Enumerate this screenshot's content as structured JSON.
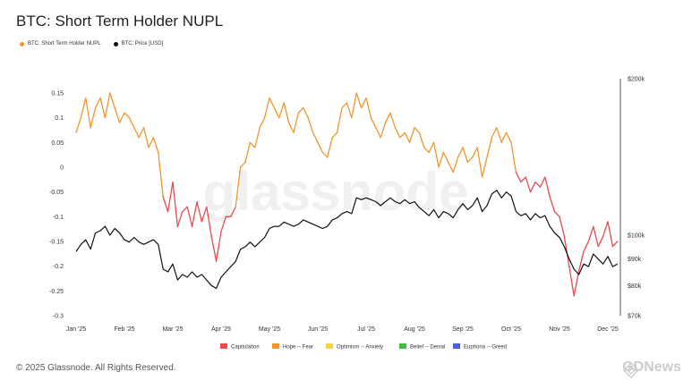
{
  "title": "BTC: Short Term Holder NUPL",
  "footer": "© 2025 Glassnode. All Rights Reserved.",
  "watermark": "glassnode",
  "corner_watermark": "GDNews",
  "colors": {
    "nupl": "#f0962e",
    "price": "#111111",
    "capitulation": "#e84a50",
    "hope_fear": "#f0962e",
    "optimism_anxiety": "#f5d44a",
    "belief_denial": "#3fbf3f",
    "euphoria_greed": "#4a5fe0"
  },
  "chart_data": {
    "type": "line",
    "title": "BTC: Short Term Holder NUPL",
    "x_ticks": [
      "Jan '25",
      "Feb '25",
      "Mar '25",
      "Apr '25",
      "May '25",
      "Jun '25",
      "Jul '25",
      "Aug '25",
      "Sep '25",
      "Oct '25",
      "Nov '25",
      "Dec '25"
    ],
    "y_left": {
      "ticks": [
        "0.15",
        "0.1",
        "0.05",
        "0",
        "-0.05",
        "-0.1",
        "-0.15",
        "-0.2",
        "-0.25",
        "-0.3"
      ],
      "range": [
        -0.3,
        0.15
      ]
    },
    "y_right": {
      "ticks": [
        "$200k",
        "$100k",
        "$90k",
        "$80k",
        "$70k"
      ],
      "scale": "log",
      "range": [
        70000,
        200000
      ]
    },
    "top_legend": [
      {
        "label": "BTC: Short Term Holder NUPL",
        "color": "#f0962e"
      },
      {
        "label": "BTC: Price [USD]",
        "color": "#111111"
      }
    ],
    "bottom_legend": [
      {
        "label": "Capitulation",
        "color": "#e84a50"
      },
      {
        "label": "Hope -- Fear",
        "color": "#f0962e"
      },
      {
        "label": "Optimism -- Anxiety",
        "color": "#f5d44a"
      },
      {
        "label": "Belief -- Denial",
        "color": "#3fbf3f"
      },
      {
        "label": "Euphoria -- Greed",
        "color": "#4a5fe0"
      }
    ],
    "series": [
      {
        "name": "BTC: Short Term Holder NUPL",
        "x": [
          0,
          0.1,
          0.2,
          0.3,
          0.4,
          0.5,
          0.6,
          0.7,
          0.8,
          0.9,
          1.0,
          1.1,
          1.2,
          1.3,
          1.4,
          1.5,
          1.6,
          1.7,
          1.8,
          1.9,
          2.0,
          2.1,
          2.2,
          2.3,
          2.4,
          2.5,
          2.6,
          2.7,
          2.8,
          2.9,
          3.0,
          3.1,
          3.2,
          3.3,
          3.4,
          3.5,
          3.6,
          3.7,
          3.8,
          3.9,
          4.0,
          4.1,
          4.2,
          4.3,
          4.4,
          4.5,
          4.6,
          4.7,
          4.8,
          4.9,
          5.0,
          5.1,
          5.2,
          5.3,
          5.4,
          5.5,
          5.6,
          5.7,
          5.8,
          5.9,
          6.0,
          6.1,
          6.2,
          6.3,
          6.4,
          6.5,
          6.6,
          6.7,
          6.8,
          6.9,
          7.0,
          7.1,
          7.2,
          7.3,
          7.4,
          7.5,
          7.6,
          7.7,
          7.8,
          7.9,
          8.0,
          8.1,
          8.2,
          8.3,
          8.4,
          8.5,
          8.6,
          8.7,
          8.8,
          8.9,
          9.0,
          9.1,
          9.2,
          9.3,
          9.4,
          9.5,
          9.6,
          9.7,
          9.8,
          9.9,
          10.0,
          10.1,
          10.2,
          10.3,
          10.4,
          10.5,
          10.6,
          10.7,
          10.8,
          10.9,
          11.0,
          11.1,
          11.2
        ],
        "values": [
          0.07,
          0.1,
          0.14,
          0.08,
          0.12,
          0.14,
          0.1,
          0.15,
          0.12,
          0.09,
          0.11,
          0.1,
          0.08,
          0.06,
          0.08,
          0.04,
          0.06,
          0.03,
          -0.06,
          -0.09,
          -0.03,
          -0.12,
          -0.09,
          -0.08,
          -0.12,
          -0.07,
          -0.11,
          -0.08,
          -0.14,
          -0.19,
          -0.13,
          -0.1,
          -0.1,
          -0.08,
          0.0,
          0.01,
          0.05,
          0.04,
          0.08,
          0.1,
          0.14,
          0.12,
          0.1,
          0.13,
          0.09,
          0.07,
          0.11,
          0.12,
          0.1,
          0.07,
          0.05,
          0.03,
          0.02,
          0.06,
          0.07,
          0.12,
          0.13,
          0.1,
          0.15,
          0.12,
          0.14,
          0.1,
          0.08,
          0.06,
          0.09,
          0.11,
          0.08,
          0.06,
          0.07,
          0.05,
          0.08,
          0.07,
          0.04,
          0.03,
          0.05,
          0.0,
          0.03,
          0.01,
          -0.01,
          0.02,
          0.04,
          0.01,
          0.02,
          0.04,
          -0.02,
          0.02,
          0.06,
          0.08,
          0.05,
          0.07,
          0.05,
          -0.01,
          -0.03,
          -0.02,
          -0.05,
          -0.03,
          -0.04,
          -0.02,
          -0.06,
          -0.09,
          -0.1,
          -0.14,
          -0.2,
          -0.26,
          -0.21,
          -0.17,
          -0.15,
          -0.12,
          -0.16,
          -0.14,
          -0.11,
          -0.16,
          -0.15
        ]
      },
      {
        "name": "BTC: Price [USD]",
        "x": [
          0,
          0.1,
          0.2,
          0.3,
          0.4,
          0.5,
          0.6,
          0.7,
          0.8,
          0.9,
          1.0,
          1.1,
          1.2,
          1.3,
          1.4,
          1.5,
          1.6,
          1.7,
          1.8,
          1.9,
          2.0,
          2.1,
          2.2,
          2.3,
          2.4,
          2.5,
          2.6,
          2.7,
          2.8,
          2.9,
          3.0,
          3.1,
          3.2,
          3.3,
          3.4,
          3.5,
          3.6,
          3.7,
          3.8,
          3.9,
          4.0,
          4.1,
          4.2,
          4.3,
          4.4,
          4.5,
          4.6,
          4.7,
          4.8,
          4.9,
          5.0,
          5.1,
          5.2,
          5.3,
          5.4,
          5.5,
          5.6,
          5.7,
          5.8,
          5.9,
          6.0,
          6.1,
          6.2,
          6.3,
          6.4,
          6.5,
          6.6,
          6.7,
          6.8,
          6.9,
          7.0,
          7.1,
          7.2,
          7.3,
          7.4,
          7.5,
          7.6,
          7.7,
          7.8,
          7.9,
          8.0,
          8.1,
          8.2,
          8.3,
          8.4,
          8.5,
          8.6,
          8.7,
          8.8,
          8.9,
          9.0,
          9.1,
          9.2,
          9.3,
          9.4,
          9.5,
          9.6,
          9.7,
          9.8,
          9.9,
          10.0,
          10.1,
          10.2,
          10.3,
          10.4,
          10.5,
          10.6,
          10.7,
          10.8,
          10.9,
          11.0,
          11.1,
          11.2
        ],
        "values": [
          93000,
          96000,
          98000,
          94000,
          101000,
          102000,
          104000,
          100000,
          103000,
          101000,
          98000,
          97000,
          99000,
          97000,
          96000,
          97000,
          98000,
          96000,
          86000,
          85000,
          88000,
          82000,
          84000,
          83000,
          85000,
          83000,
          84000,
          82000,
          80000,
          79000,
          83000,
          85000,
          87000,
          89000,
          94000,
          95000,
          97000,
          95000,
          97000,
          99000,
          103000,
          104000,
          104000,
          106000,
          105000,
          104000,
          105000,
          107000,
          106000,
          105000,
          104000,
          103000,
          104000,
          107000,
          108000,
          110000,
          111000,
          110000,
          118000,
          117000,
          118000,
          117000,
          116000,
          114000,
          116000,
          118000,
          116000,
          115000,
          117000,
          115000,
          116000,
          113000,
          111000,
          109000,
          112000,
          108000,
          111000,
          110000,
          108000,
          112000,
          115000,
          112000,
          114000,
          118000,
          111000,
          114000,
          120000,
          122000,
          118000,
          121000,
          119000,
          111000,
          109000,
          110000,
          107000,
          110000,
          108000,
          109000,
          104000,
          101000,
          99000,
          95000,
          90000,
          86000,
          84000,
          88000,
          87000,
          92000,
          90000,
          88000,
          91000,
          87000,
          88000
        ]
      }
    ],
    "grid": false,
    "legend_placement": "top-left and bottom-center"
  }
}
